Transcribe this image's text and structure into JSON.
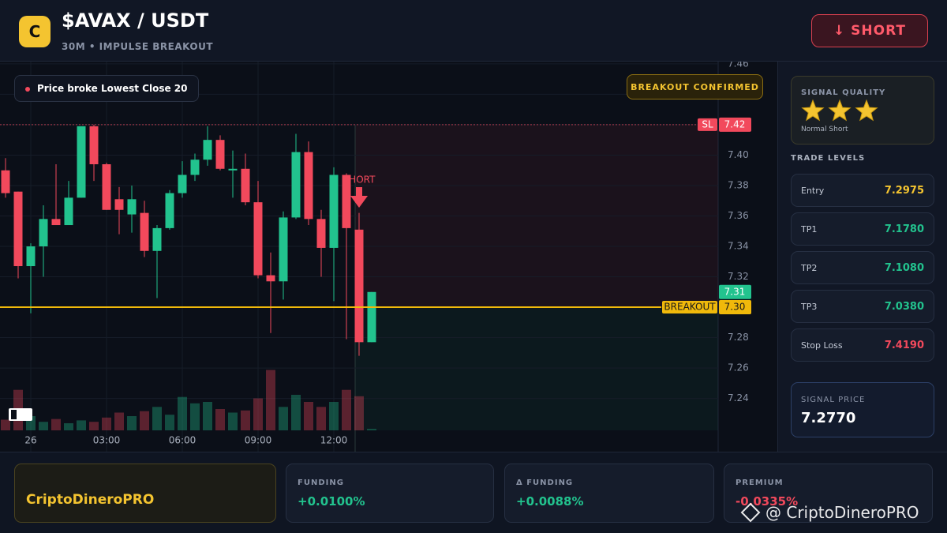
{
  "header": {
    "logo": "C",
    "title": "$AVAX / USDT",
    "subtitle": "30M • IMPULSE BREAKOUT",
    "action": "↓ SHORT"
  },
  "chart_data": {
    "type": "candlestick",
    "categories": [
      null,
      null,
      "26",
      null,
      null,
      null,
      null,
      null,
      "03:00",
      null,
      null,
      null,
      null,
      null,
      "06:00",
      null,
      null,
      null,
      null,
      null,
      "09:00",
      null,
      null,
      null,
      null,
      null,
      "12:00",
      null,
      null,
      null
    ],
    "open": [
      7.39,
      7.376,
      7.327,
      7.34,
      7.358,
      7.354,
      7.372,
      7.419,
      7.394,
      7.371,
      7.361,
      7.362,
      7.337,
      7.352,
      7.375,
      7.387,
      7.397,
      7.41,
      7.39,
      7.391,
      7.369,
      7.321,
      7.317,
      7.359,
      7.402,
      7.358,
      7.339,
      7.387,
      7.351,
      7.277
    ],
    "high": [
      7.398,
      7.376,
      7.342,
      7.367,
      7.394,
      7.383,
      7.419,
      7.42,
      7.395,
      7.379,
      7.38,
      7.37,
      7.354,
      7.377,
      7.396,
      7.401,
      7.419,
      7.413,
      7.403,
      7.401,
      7.383,
      7.336,
      7.363,
      7.414,
      7.409,
      7.364,
      7.392,
      7.388,
      7.362,
      7.31
    ],
    "low": [
      7.372,
      7.319,
      7.296,
      7.32,
      7.354,
      7.354,
      7.372,
      7.383,
      7.364,
      7.348,
      7.349,
      7.333,
      7.306,
      7.351,
      7.372,
      7.383,
      7.393,
      7.39,
      7.372,
      7.367,
      7.319,
      7.283,
      7.305,
      7.358,
      7.354,
      7.32,
      7.304,
      7.279,
      7.268,
      7.277
    ],
    "close": [
      7.375,
      7.327,
      7.34,
      7.358,
      7.354,
      7.372,
      7.419,
      7.394,
      7.364,
      7.364,
      7.371,
      7.337,
      7.352,
      7.375,
      7.387,
      7.397,
      7.41,
      7.391,
      7.391,
      7.369,
      7.321,
      7.317,
      7.359,
      7.402,
      7.358,
      7.339,
      7.387,
      7.352,
      7.277,
      7.31
    ],
    "volume": [
      15,
      57,
      20,
      12,
      16,
      10,
      14,
      12,
      18,
      25,
      20,
      27,
      33,
      22,
      47,
      38,
      40,
      30,
      25,
      28,
      45,
      85,
      33,
      50,
      40,
      33,
      40,
      57,
      48,
      2
    ],
    "volume_ylim": [
      0,
      100
    ],
    "up_color": "#22c38e",
    "down_color": "#f2495c",
    "ylim": [
      7.205,
      7.4615
    ],
    "yticks": [
      7.24,
      7.26,
      7.28,
      {
        "value": 7.3,
        "label": "7.30"
      },
      7.32,
      7.34,
      7.36,
      7.38,
      {
        "value": 7.4,
        "label": "7.40"
      },
      7.42,
      7.44,
      7.46
    ],
    "grid": true,
    "annotation": "Price broke Lowest Close 20",
    "badge": "BREAKOUT CONFIRMED",
    "marker_label": "SHORT",
    "levels": [
      {
        "name": "SL",
        "value": 7.42,
        "color": "#f2495c"
      },
      {
        "name": "BREAKOUT",
        "value": 7.3,
        "value_label": "7.30",
        "color": "#f0b90b"
      }
    ],
    "last_price": 7.31
  },
  "sidebar": {
    "quality_title": "SIGNAL QUALITY",
    "stars": 3,
    "quality_label": "Normal Short",
    "levels_title": "TRADE LEVELS",
    "levels": [
      {
        "name": "Entry",
        "value": "7.2975"
      },
      {
        "name": "TP1",
        "value": "7.1780"
      },
      {
        "name": "TP2",
        "value": "7.1080"
      },
      {
        "name": "TP3",
        "value": "7.0380"
      },
      {
        "name": "Stop Loss",
        "value": "7.4190"
      }
    ],
    "signal_price_title": "SIGNAL PRICE",
    "signal_price": "7.2770"
  },
  "footer": {
    "brand": "CriptoDineroPRO",
    "stats": [
      {
        "label": "FUNDING",
        "value": "+0.0100%"
      },
      {
        "label": "Δ FUNDING",
        "value": "+0.0088%"
      },
      {
        "label": "PREMIUM",
        "value": "-0.0335%"
      }
    ],
    "watermark": "@ CriptoDineroPRO"
  }
}
